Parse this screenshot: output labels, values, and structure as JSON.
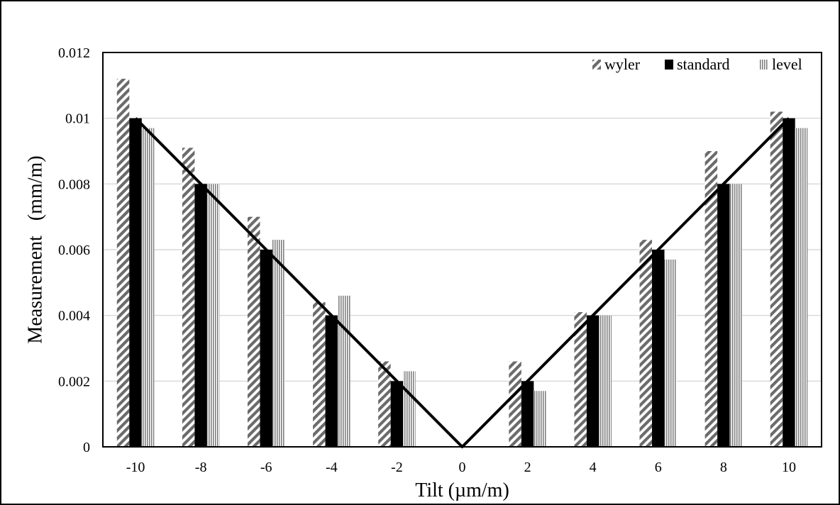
{
  "chart_data": {
    "type": "bar",
    "xlabel": "Tilt (µm/m)",
    "ylabel": "Measurement   (mm/m)",
    "categories": [
      "-10",
      "-8",
      "-6",
      "-4",
      "-2",
      "0",
      "2",
      "4",
      "6",
      "8",
      "10"
    ],
    "ylim": [
      0,
      0.012
    ],
    "yticks": [
      "0",
      "0.002",
      "0.004",
      "0.006",
      "0.008",
      "0.01",
      "0.012"
    ],
    "grid": true,
    "legend_position": "top-right",
    "series": [
      {
        "name": "wyler",
        "pattern": "diagonal-hatch",
        "color": "#6b6b6b",
        "values": [
          0.0112,
          0.0091,
          0.007,
          0.0044,
          0.0026,
          0,
          0.0026,
          0.0041,
          0.0063,
          0.009,
          0.0102
        ]
      },
      {
        "name": "standard",
        "pattern": "solid",
        "color": "#000000",
        "values": [
          0.01,
          0.008,
          0.006,
          0.004,
          0.002,
          0,
          0.002,
          0.004,
          0.006,
          0.008,
          0.01
        ]
      },
      {
        "name": "level",
        "pattern": "vertical-lines",
        "color": "#7a7a7a",
        "values": [
          0.0097,
          0.008,
          0.0063,
          0.0046,
          0.0023,
          0,
          0.0017,
          0.004,
          0.0057,
          0.008,
          0.0097
        ]
      }
    ],
    "reference_line": {
      "type": "line",
      "color": "#000000",
      "values": [
        0.01,
        0.008,
        0.006,
        0.004,
        0.002,
        0,
        0.002,
        0.004,
        0.006,
        0.008,
        0.01
      ]
    }
  }
}
